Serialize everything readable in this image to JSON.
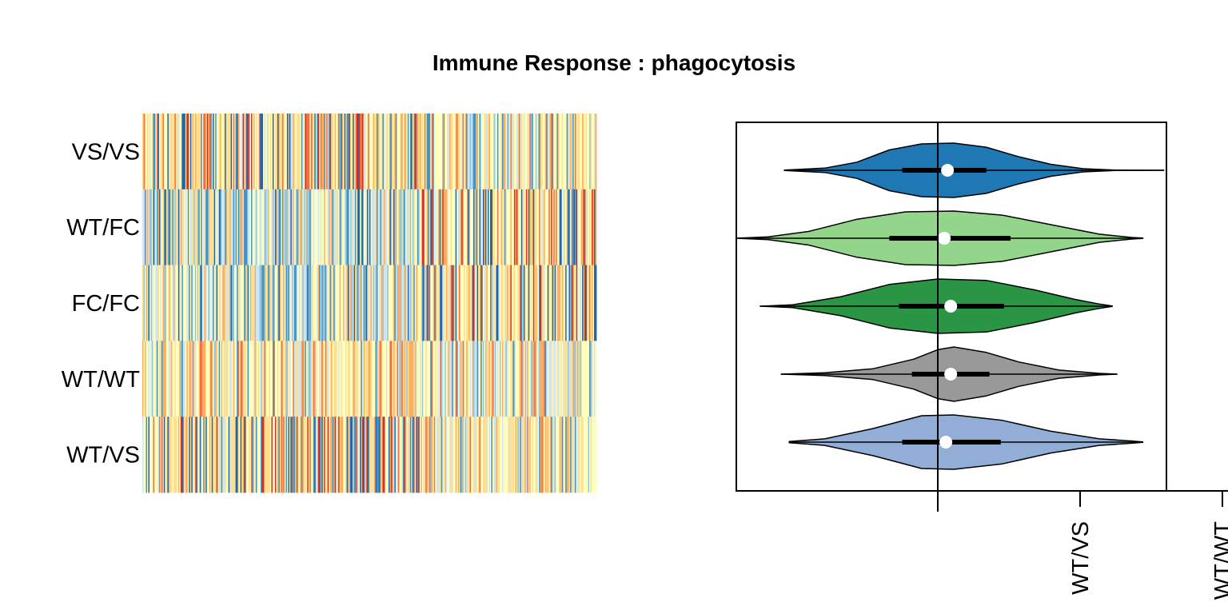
{
  "chart_data": [
    {
      "type": "heatmap",
      "title": "Immune Response : phagocytosis",
      "rows": [
        "VS/VS",
        "WT/FC",
        "FC/FC",
        "WT/WT",
        "WT/VS"
      ],
      "colormap": [
        "#2166ac",
        "#4393c3",
        "#92c5de",
        "#d1e5f0",
        "#ffffbf",
        "#fee090",
        "#fdae61",
        "#f46d43",
        "#d73027"
      ],
      "profiles": [
        {
          "row": "VS/VS",
          "first_block": "warm",
          "second_block": "mixed"
        },
        {
          "row": "WT/FC",
          "first_block": "cool",
          "second_block": "warm"
        },
        {
          "row": "FC/FC",
          "first_block": "cool",
          "second_block": "warm"
        },
        {
          "row": "WT/WT",
          "first_block": "mixed",
          "second_block": "mixed"
        },
        {
          "row": "WT/VS",
          "first_block": "warm",
          "second_block": "mixed"
        }
      ]
    },
    {
      "type": "violin",
      "groups": [
        {
          "color": "#1f78b4",
          "min": -0.95,
          "q1": -0.22,
          "median": 0.06,
          "q3": 0.3,
          "max": 1.4,
          "density": [
            [
              -0.95,
              0.01
            ],
            [
              -0.7,
              0.08
            ],
            [
              -0.5,
              0.3
            ],
            [
              -0.3,
              0.75
            ],
            [
              -0.1,
              0.97
            ],
            [
              0.1,
              1.0
            ],
            [
              0.3,
              0.85
            ],
            [
              0.5,
              0.5
            ],
            [
              0.7,
              0.22
            ],
            [
              0.9,
              0.06
            ],
            [
              1.1,
              0.01
            ],
            [
              1.4,
              0.0
            ]
          ]
        },
        {
          "color": "#93d68b",
          "min": -1.25,
          "q1": -0.3,
          "median": 0.04,
          "q3": 0.45,
          "max": 1.27,
          "density": [
            [
              -1.25,
              0.0
            ],
            [
              -1.05,
              0.05
            ],
            [
              -0.8,
              0.25
            ],
            [
              -0.5,
              0.7
            ],
            [
              -0.2,
              0.97
            ],
            [
              0.1,
              1.0
            ],
            [
              0.4,
              0.85
            ],
            [
              0.7,
              0.5
            ],
            [
              1.0,
              0.15
            ],
            [
              1.2,
              0.03
            ],
            [
              1.27,
              0.01
            ]
          ]
        },
        {
          "color": "#2a9645",
          "min": -1.1,
          "q1": -0.24,
          "median": 0.08,
          "q3": 0.41,
          "max": 1.08,
          "density": [
            [
              -1.1,
              0.0
            ],
            [
              -0.9,
              0.05
            ],
            [
              -0.6,
              0.35
            ],
            [
              -0.3,
              0.8
            ],
            [
              0.0,
              1.0
            ],
            [
              0.3,
              0.95
            ],
            [
              0.6,
              0.6
            ],
            [
              0.85,
              0.25
            ],
            [
              1.0,
              0.08
            ],
            [
              1.08,
              0.01
            ]
          ]
        },
        {
          "color": "#999999",
          "min": -0.97,
          "q1": -0.16,
          "median": 0.08,
          "q3": 0.32,
          "max": 1.11,
          "density": [
            [
              -0.97,
              0.0
            ],
            [
              -0.7,
              0.05
            ],
            [
              -0.4,
              0.2
            ],
            [
              -0.15,
              0.55
            ],
            [
              0.0,
              0.9
            ],
            [
              0.1,
              1.0
            ],
            [
              0.3,
              0.8
            ],
            [
              0.5,
              0.45
            ],
            [
              0.75,
              0.15
            ],
            [
              1.0,
              0.03
            ],
            [
              1.11,
              0.0
            ]
          ]
        },
        {
          "color": "#92aed6",
          "min": -0.92,
          "q1": -0.22,
          "median": 0.05,
          "q3": 0.39,
          "max": 1.27,
          "density": [
            [
              -0.92,
              0.02
            ],
            [
              -0.7,
              0.12
            ],
            [
              -0.4,
              0.5
            ],
            [
              -0.1,
              0.97
            ],
            [
              0.1,
              1.0
            ],
            [
              0.4,
              0.8
            ],
            [
              0.7,
              0.4
            ],
            [
              1.0,
              0.12
            ],
            [
              1.2,
              0.04
            ],
            [
              1.27,
              0.01
            ]
          ]
        }
      ],
      "vline_at": 0,
      "xtick_labels": [
        "WT/VS",
        "WT/WT"
      ]
    }
  ]
}
